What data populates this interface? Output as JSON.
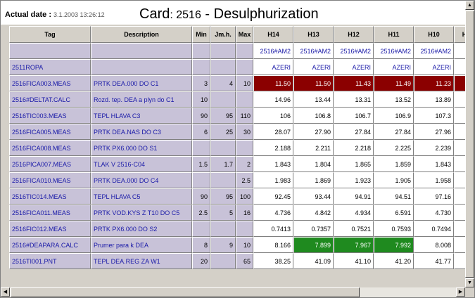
{
  "header": {
    "actual_label": "Actual date :",
    "actual_value": "3.1.2003 13:26:12",
    "card_prefix": "Card",
    "card_number": ": 2516",
    "card_suffix": "- Desulphurization"
  },
  "columns": [
    "Tag",
    "Description",
    "Min",
    "Jm.h.",
    "Max",
    "H14",
    "H13",
    "H12",
    "H11",
    "H10",
    "H"
  ],
  "meta_rows": [
    {
      "tag": "",
      "cells": [
        "2516#AM2",
        "2516#AM2",
        "2516#AM2",
        "2516#AM2",
        "2516#AM2",
        "25"
      ]
    },
    {
      "tag": "2511ROPA",
      "cells": [
        "AZERI",
        "AZERI",
        "AZERI",
        "AZERI",
        "AZERI",
        ""
      ]
    }
  ],
  "rows": [
    {
      "tag": "2516FICA003.MEAS",
      "desc": "PRTK DEA.000 DO C1",
      "min": "3",
      "jmh": "4",
      "max": "10",
      "vals": [
        "11.50",
        "11.50",
        "11.43",
        "11.49",
        "11.23"
      ],
      "color": "red"
    },
    {
      "tag": "2516#DELTAT.CALC",
      "desc": "Rozd. tep. DEA a plyn do C1",
      "min": "10",
      "jmh": "",
      "max": "",
      "vals": [
        "14.96",
        "13.44",
        "13.31",
        "13.52",
        "13.89"
      ],
      "color": ""
    },
    {
      "tag": "2516TIC003.MEAS",
      "desc": "TEPL HLAVA C3",
      "min": "90",
      "jmh": "95",
      "max": "110",
      "vals": [
        "106",
        "106.8",
        "106.7",
        "106.9",
        "107.3"
      ],
      "color": ""
    },
    {
      "tag": "2516FICA005.MEAS",
      "desc": "PRTK DEA.NAS DO C3",
      "min": "6",
      "jmh": "25",
      "max": "30",
      "vals": [
        "28.07",
        "27.90",
        "27.84",
        "27.84",
        "27.96"
      ],
      "color": ""
    },
    {
      "tag": "2516FICA008.MEAS",
      "desc": "PRTK PX6.000 DO S1",
      "min": "",
      "jmh": "",
      "max": "",
      "vals": [
        "2.188",
        "2.211",
        "2.218",
        "2.225",
        "2.239"
      ],
      "color": ""
    },
    {
      "tag": "2516PICA007.MEAS",
      "desc": "TLAK V 2516-C04",
      "min": "1.5",
      "jmh": "1.7",
      "max": "2",
      "vals": [
        "1.843",
        "1.804",
        "1.865",
        "1.859",
        "1.843"
      ],
      "color": ""
    },
    {
      "tag": "2516FICA010.MEAS",
      "desc": "PRTK DEA.000 DO C4",
      "min": "",
      "jmh": "",
      "max": "2.5",
      "vals": [
        "1.983",
        "1.869",
        "1.923",
        "1.905",
        "1.958"
      ],
      "color": ""
    },
    {
      "tag": "2516TIC014.MEAS",
      "desc": "TEPL HLAVA C5",
      "min": "90",
      "jmh": "95",
      "max": "100",
      "vals": [
        "92.45",
        "93.44",
        "94.91",
        "94.51",
        "97.16"
      ],
      "color": ""
    },
    {
      "tag": "2516FICA011.MEAS",
      "desc": "PRTK VOD.KYS Z T10 DO C5",
      "min": "2.5",
      "jmh": "5",
      "max": "16",
      "vals": [
        "4.736",
        "4.842",
        "4.934",
        "6.591",
        "4.730"
      ],
      "color": ""
    },
    {
      "tag": "2516FIC012.MEAS",
      "desc": "PRTK PX6.000 DO S2",
      "min": "",
      "jmh": "",
      "max": "",
      "vals": [
        "0.7413",
        "0.7357",
        "0.7521",
        "0.7593",
        "0.7494"
      ],
      "color": ""
    },
    {
      "tag": "2516#DEAPARA.CALC",
      "desc": "Prumer para k DEA",
      "min": "8",
      "jmh": "9",
      "max": "10",
      "vals": [
        "8.166",
        "7.899",
        "7.967",
        "7.992",
        "8.008"
      ],
      "green": [
        1,
        2,
        3
      ]
    },
    {
      "tag": "2516TI001.PNT",
      "desc": "TEPL DEA.REG ZA W1",
      "min": "20",
      "jmh": "",
      "max": "65",
      "vals": [
        "38.25",
        "41.09",
        "41.10",
        "41.20",
        "41.77"
      ],
      "color": ""
    }
  ],
  "icons": {
    "up": "arrow-up-icon",
    "down": "arrow-down-icon",
    "left": "arrow-left-icon",
    "right": "arrow-right-icon"
  },
  "colors": {
    "alarm_red": "#8b0000",
    "ok_green": "#1f8a1f",
    "tag_blue": "#1a1aa8"
  }
}
